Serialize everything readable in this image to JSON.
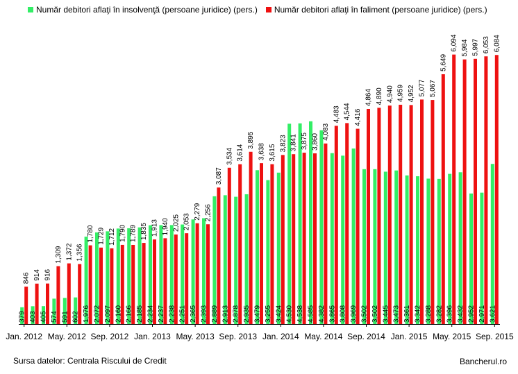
{
  "chart_data": {
    "type": "bar",
    "legend_position": "top",
    "grid": false,
    "series": [
      {
        "name": "Număr debitori aflaţi în insolvenţă (persoane juridice) (pers.)",
        "color": "#33ee66",
        "values": [
          379,
          403,
          405,
          574,
          591,
          602,
          1976,
          2072,
          2097,
          2160,
          2166,
          2185,
          2234,
          2237,
          2238,
          2251,
          2365,
          2393,
          2889,
          2913,
          2878,
          2935,
          3479,
          3255,
          3424,
          4530,
          4538,
          4585,
          4382,
          3865,
          3808,
          3969,
          3502,
          3502,
          3445,
          3473,
          3361,
          3342,
          3288,
          3282,
          3396,
          3432,
          2952,
          2971,
          3621
        ]
      },
      {
        "name": "Număr debitori aflaţi în faliment (persoane juridice) (pers.)",
        "color": "#ee1111",
        "values": [
          846,
          914,
          916,
          1309,
          1372,
          1356,
          1780,
          1729,
          1712,
          1790,
          1789,
          1835,
          1913,
          1940,
          2025,
          2053,
          2279,
          2256,
          3087,
          3534,
          3614,
          3895,
          3638,
          3615,
          3823,
          3841,
          3875,
          3860,
          4083,
          4483,
          4544,
          4416,
          4864,
          4890,
          4940,
          4959,
          4952,
          5077,
          5067,
          5649,
          6094,
          5984,
          5997,
          6053,
          6084
        ]
      }
    ],
    "x_tick_labels": [
      "Jan. 2012",
      "May. 2012",
      "Sep. 2012",
      "Jan. 2013",
      "May. 2013",
      "Sep. 2013",
      "Jan. 2014",
      "May. 2014",
      "Sep. 2014",
      "Jan. 2015",
      "May. 2015",
      "Sep. 2015"
    ],
    "ylim": [
      0,
      6700
    ],
    "label_format": "comma"
  },
  "footer": {
    "source": "Sursa datelor: Centrala Riscului de Credit",
    "credit": "Bancherul.ro"
  }
}
